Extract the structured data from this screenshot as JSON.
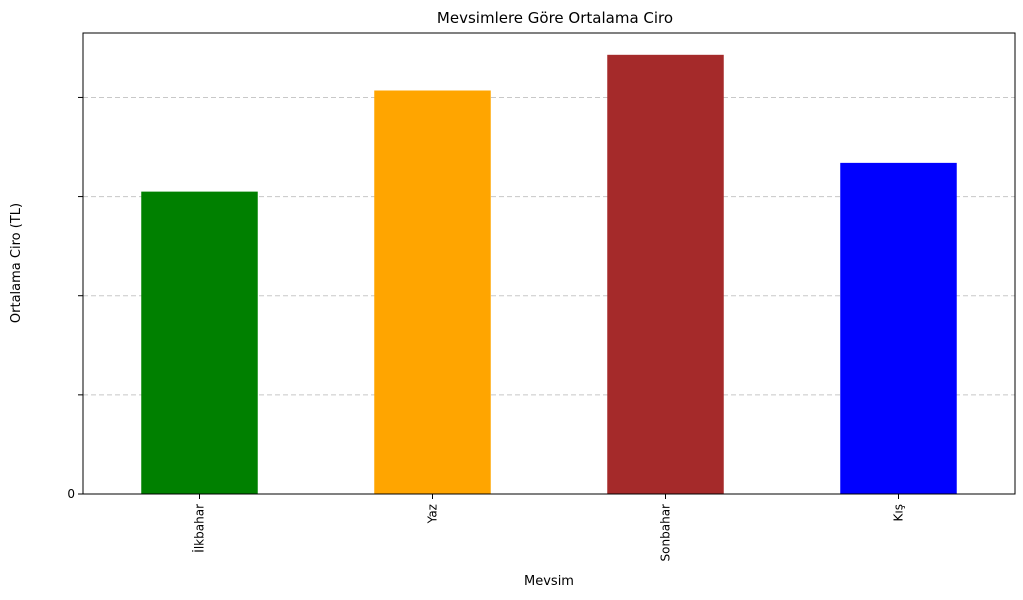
{
  "chart_data": {
    "type": "bar",
    "title": "Mevsimlere Göre Ortalama Ciro",
    "xlabel": "Mevsim",
    "ylabel": "Ortalama Ciro (TL)",
    "categories": [
      "İlkbahar",
      "Yaz",
      "Sonbahar",
      "Kış"
    ],
    "values": [
      3.05,
      4.07,
      4.43,
      3.34
    ],
    "colors": [
      "#008000",
      "#ffa500",
      "#a52a2a",
      "#0000ff"
    ],
    "ylim": [
      0,
      4.65
    ],
    "yticks": [
      0,
      1,
      2,
      3,
      4
    ],
    "ytick_labels": [
      "0",
      "",
      "",
      "",
      ""
    ],
    "grid": "y-dashed",
    "legend": "none"
  }
}
